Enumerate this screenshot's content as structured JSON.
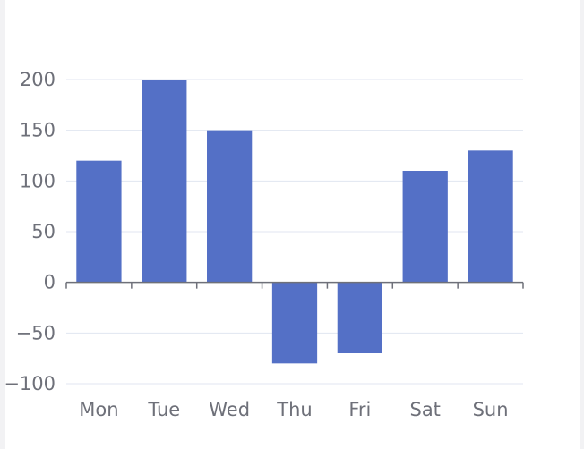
{
  "chart_data": {
    "type": "bar",
    "categories": [
      "Mon",
      "Tue",
      "Wed",
      "Thu",
      "Fri",
      "Sat",
      "Sun"
    ],
    "values": [
      120,
      200,
      150,
      -80,
      -70,
      110,
      130
    ],
    "ylim": [
      -100,
      200
    ],
    "yticks": [
      -100,
      -50,
      0,
      50,
      100,
      150,
      200
    ],
    "grid": true,
    "title": "",
    "xlabel": "",
    "ylabel": "",
    "bar_color": "#5470c6",
    "axis_color": "#6e7079",
    "grid_color": "#e0e6f1"
  }
}
